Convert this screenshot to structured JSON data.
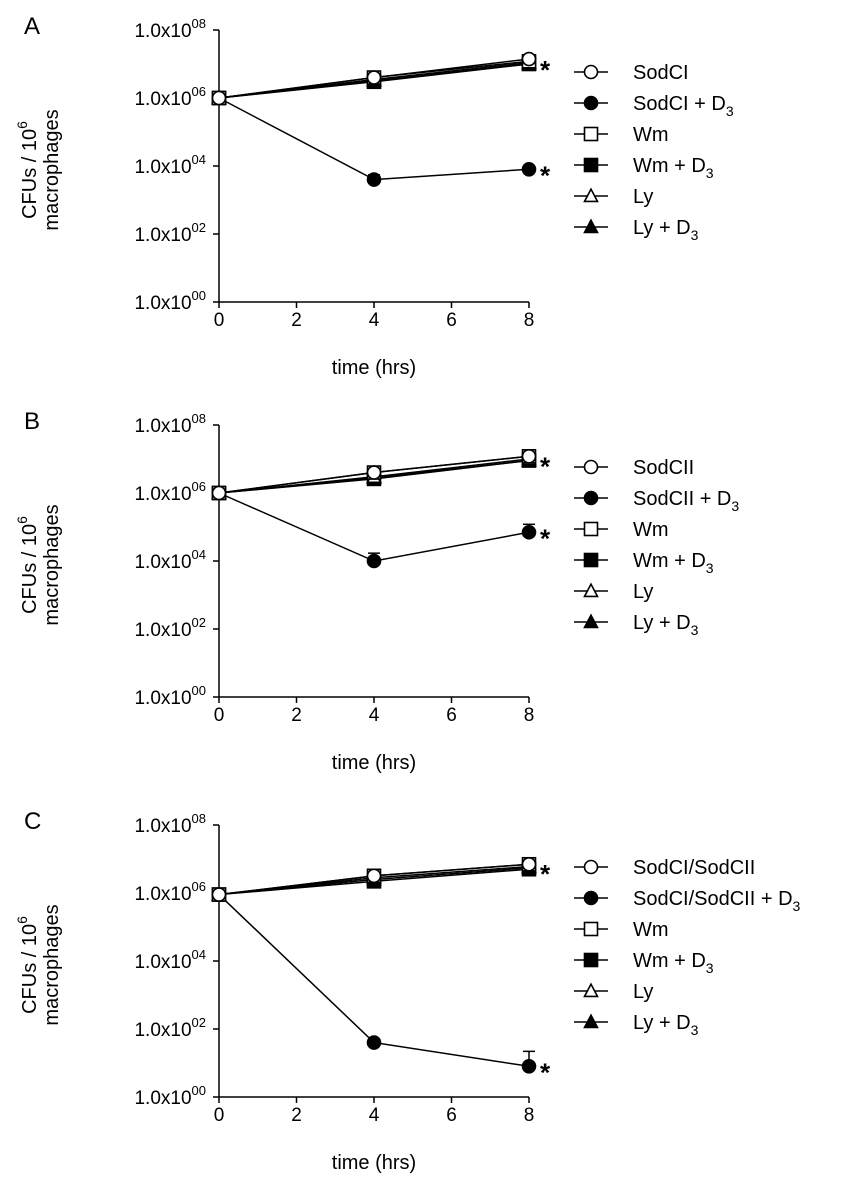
{
  "chart_data": [
    {
      "type": "line",
      "panel_label": "A",
      "xlabel": "time (hrs)",
      "ylabel": "CFUs / 10^6 macrophages",
      "ylabel_line1": "CFUs / 10",
      "ylabel_sup": "6",
      "ylabel_line2": "macrophages",
      "x_ticks": [
        "0",
        "2",
        "4",
        "6",
        "8"
      ],
      "y_ticks": [
        {
          "base": "1.0x10",
          "exp": "08"
        },
        {
          "base": "1.0x10",
          "exp": "06"
        },
        {
          "base": "1.0x10",
          "exp": "04"
        },
        {
          "base": "1.0x10",
          "exp": "02"
        },
        {
          "base": "1.0x10",
          "exp": "00"
        }
      ],
      "xlim": [
        0,
        8
      ],
      "ylim": [
        1,
        100000000
      ],
      "yscale": "log",
      "grid": false,
      "legend_position": "right",
      "annotations": [
        {
          "text": "*",
          "x": 8,
          "y": 10000000
        },
        {
          "text": "*",
          "x": 8,
          "y": 8000
        }
      ],
      "x": [
        0,
        4,
        8
      ],
      "series": [
        {
          "name": "SodCI",
          "marker": "open-circle",
          "values": [
            1000000,
            4000000,
            14000000
          ]
        },
        {
          "name": "SodCI + D3",
          "marker": "filled-circle",
          "values": [
            1000000,
            4000,
            8000
          ],
          "error_upper": [
            null,
            5500,
            null
          ]
        },
        {
          "name": "Wm",
          "marker": "open-square",
          "values": [
            1000000,
            4000000,
            12000000
          ]
        },
        {
          "name": "Wm + D3",
          "marker": "filled-square",
          "values": [
            1000000,
            3000000,
            10000000
          ]
        },
        {
          "name": "Ly",
          "marker": "open-triangle",
          "values": [
            1000000,
            3500000,
            11000000
          ]
        },
        {
          "name": "Ly + D3",
          "marker": "filled-triangle",
          "values": [
            1000000,
            3200000,
            10000000
          ]
        }
      ]
    },
    {
      "type": "line",
      "panel_label": "B",
      "xlabel": "time (hrs)",
      "ylabel": "CFUs / 10^6 macrophages",
      "ylabel_line1": "CFUs / 10",
      "ylabel_sup": "6",
      "ylabel_line2": "macrophages",
      "x_ticks": [
        "0",
        "2",
        "4",
        "6",
        "8"
      ],
      "y_ticks": [
        {
          "base": "1.0x10",
          "exp": "08"
        },
        {
          "base": "1.0x10",
          "exp": "06"
        },
        {
          "base": "1.0x10",
          "exp": "04"
        },
        {
          "base": "1.0x10",
          "exp": "02"
        },
        {
          "base": "1.0x10",
          "exp": "00"
        }
      ],
      "xlim": [
        0,
        8
      ],
      "ylim": [
        1,
        100000000
      ],
      "yscale": "log",
      "grid": false,
      "legend_position": "right",
      "annotations": [
        {
          "text": "*",
          "x": 8,
          "y": 9000000
        },
        {
          "text": "*",
          "x": 8,
          "y": 70000
        }
      ],
      "x": [
        0,
        4,
        8
      ],
      "series": [
        {
          "name": "SodCII",
          "marker": "open-circle",
          "values": [
            1000000,
            4000000,
            12000000
          ]
        },
        {
          "name": "SodCII + D3",
          "marker": "filled-circle",
          "values": [
            1000000,
            10000,
            70000
          ],
          "error_upper": [
            null,
            17000,
            120000
          ]
        },
        {
          "name": "Wm",
          "marker": "open-square",
          "values": [
            1000000,
            4000000,
            12000000
          ]
        },
        {
          "name": "Wm + D3",
          "marker": "filled-square",
          "values": [
            1000000,
            2600000,
            9000000
          ]
        },
        {
          "name": "Ly",
          "marker": "open-triangle",
          "values": [
            1000000,
            3000000,
            10000000
          ]
        },
        {
          "name": "Ly + D3",
          "marker": "filled-triangle",
          "values": [
            1000000,
            2800000,
            9000000
          ]
        }
      ]
    },
    {
      "type": "line",
      "panel_label": "C",
      "xlabel": "time (hrs)",
      "ylabel": "CFUs / 10^6 macrophages",
      "ylabel_line1": "CFUs / 10",
      "ylabel_sup": "6",
      "ylabel_line2": "macrophages",
      "x_ticks": [
        "0",
        "2",
        "4",
        "6",
        "8"
      ],
      "y_ticks": [
        {
          "base": "1.0x10",
          "exp": "08"
        },
        {
          "base": "1.0x10",
          "exp": "06"
        },
        {
          "base": "1.0x10",
          "exp": "04"
        },
        {
          "base": "1.0x10",
          "exp": "02"
        },
        {
          "base": "1.0x10",
          "exp": "00"
        }
      ],
      "xlim": [
        0,
        8
      ],
      "ylim": [
        1,
        100000000
      ],
      "yscale": "log",
      "grid": false,
      "legend_position": "right",
      "annotations": [
        {
          "text": "*",
          "x": 8,
          "y": 5500000
        },
        {
          "text": "*",
          "x": 8,
          "y": 8
        }
      ],
      "x": [
        0,
        4,
        8
      ],
      "series": [
        {
          "name": "SodCI/SodCII",
          "marker": "open-circle",
          "values": [
            900000,
            3200000,
            7000000
          ]
        },
        {
          "name": "SodCI/SodCII + D3",
          "marker": "filled-circle",
          "values": [
            900000,
            40,
            8
          ],
          "error_upper": [
            null,
            50,
            22
          ]
        },
        {
          "name": "Wm",
          "marker": "open-square",
          "values": [
            900000,
            3200000,
            7000000
          ]
        },
        {
          "name": "Wm + D3",
          "marker": "filled-square",
          "values": [
            900000,
            2200000,
            5000000
          ]
        },
        {
          "name": "Ly",
          "marker": "open-triangle",
          "values": [
            900000,
            2800000,
            6000000
          ]
        },
        {
          "name": "Ly + D3",
          "marker": "filled-triangle",
          "values": [
            900000,
            2500000,
            5500000
          ]
        }
      ]
    }
  ]
}
